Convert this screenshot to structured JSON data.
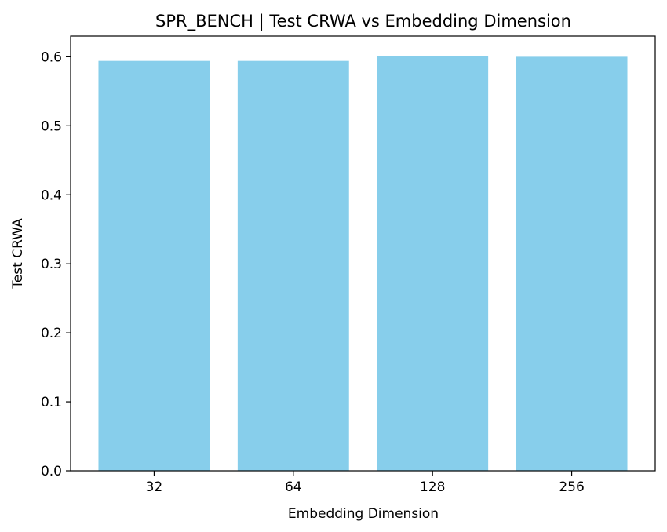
{
  "chart_data": {
    "type": "bar",
    "title": "SPR_BENCH | Test CRWA vs Embedding Dimension",
    "xlabel": "Embedding Dimension",
    "ylabel": "Test CRWA",
    "categories": [
      "32",
      "64",
      "128",
      "256"
    ],
    "values": [
      0.594,
      0.594,
      0.601,
      0.6
    ],
    "ylim": [
      0,
      0.63
    ],
    "yticks": [
      "0.0",
      "0.1",
      "0.2",
      "0.3",
      "0.4",
      "0.5",
      "0.6"
    ],
    "bar_color": "#87ceeb",
    "grid": false,
    "legend": "none"
  }
}
